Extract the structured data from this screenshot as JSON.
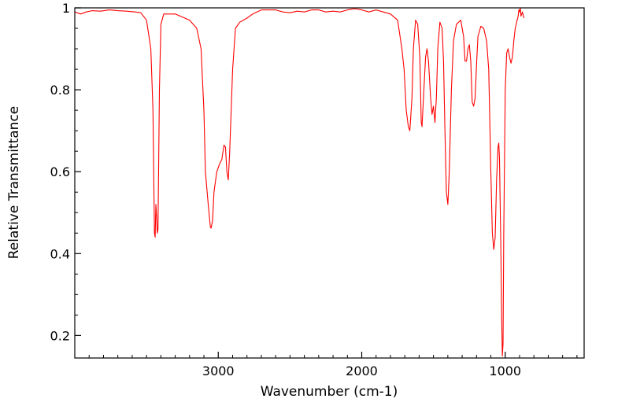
{
  "chart_data": {
    "type": "line",
    "title": "",
    "xlabel": "Wavenumber (cm-1)",
    "ylabel": "Relative Transmittance",
    "xlim": [
      4000,
      450
    ],
    "ylim": [
      0.145,
      1.0
    ],
    "x_reversed": true,
    "x_ticks": [
      3000,
      2000,
      1000
    ],
    "x_tick_labels": [
      "3000",
      "2000",
      "1000"
    ],
    "y_ticks": [
      0.2,
      0.4,
      0.6,
      0.8,
      1.0
    ],
    "y_tick_labels": [
      "0.2",
      "0.4",
      "0.6",
      "0.8",
      "1"
    ],
    "grid": false,
    "legend": "none",
    "series": [
      {
        "color": "#ff0000",
        "points": [
          [
            4000,
            0.99
          ],
          [
            3960,
            0.985
          ],
          [
            3920,
            0.99
          ],
          [
            3880,
            0.993
          ],
          [
            3820,
            0.992
          ],
          [
            3760,
            0.995
          ],
          [
            3700,
            0.993
          ],
          [
            3640,
            0.992
          ],
          [
            3580,
            0.99
          ],
          [
            3540,
            0.988
          ],
          [
            3500,
            0.97
          ],
          [
            3470,
            0.9
          ],
          [
            3455,
            0.75
          ],
          [
            3445,
            0.45
          ],
          [
            3440,
            0.44
          ],
          [
            3435,
            0.52
          ],
          [
            3430,
            0.49
          ],
          [
            3425,
            0.45
          ],
          [
            3420,
            0.46
          ],
          [
            3410,
            0.8
          ],
          [
            3400,
            0.96
          ],
          [
            3380,
            0.985
          ],
          [
            3300,
            0.985
          ],
          [
            3200,
            0.97
          ],
          [
            3150,
            0.95
          ],
          [
            3120,
            0.9
          ],
          [
            3100,
            0.75
          ],
          [
            3090,
            0.6
          ],
          [
            3070,
            0.52
          ],
          [
            3055,
            0.465
          ],
          [
            3050,
            0.462
          ],
          [
            3040,
            0.48
          ],
          [
            3030,
            0.55
          ],
          [
            3010,
            0.6
          ],
          [
            2990,
            0.62
          ],
          [
            2975,
            0.63
          ],
          [
            2960,
            0.665
          ],
          [
            2950,
            0.66
          ],
          [
            2940,
            0.6
          ],
          [
            2930,
            0.58
          ],
          [
            2920,
            0.65
          ],
          [
            2900,
            0.85
          ],
          [
            2880,
            0.95
          ],
          [
            2850,
            0.965
          ],
          [
            2800,
            0.975
          ],
          [
            2760,
            0.985
          ],
          [
            2700,
            0.995
          ],
          [
            2600,
            0.995
          ],
          [
            2550,
            0.99
          ],
          [
            2500,
            0.988
          ],
          [
            2450,
            0.992
          ],
          [
            2400,
            0.99
          ],
          [
            2350,
            0.995
          ],
          [
            2300,
            0.995
          ],
          [
            2250,
            0.99
          ],
          [
            2200,
            0.992
          ],
          [
            2150,
            0.99
          ],
          [
            2100,
            0.995
          ],
          [
            2050,
            0.998
          ],
          [
            2000,
            0.995
          ],
          [
            1950,
            0.99
          ],
          [
            1900,
            0.995
          ],
          [
            1850,
            0.99
          ],
          [
            1800,
            0.985
          ],
          [
            1750,
            0.97
          ],
          [
            1720,
            0.9
          ],
          [
            1705,
            0.85
          ],
          [
            1690,
            0.75
          ],
          [
            1675,
            0.71
          ],
          [
            1665,
            0.7
          ],
          [
            1650,
            0.78
          ],
          [
            1640,
            0.9
          ],
          [
            1625,
            0.97
          ],
          [
            1610,
            0.96
          ],
          [
            1595,
            0.88
          ],
          [
            1585,
            0.72
          ],
          [
            1580,
            0.71
          ],
          [
            1570,
            0.78
          ],
          [
            1555,
            0.88
          ],
          [
            1545,
            0.9
          ],
          [
            1535,
            0.87
          ],
          [
            1520,
            0.78
          ],
          [
            1510,
            0.74
          ],
          [
            1500,
            0.76
          ],
          [
            1490,
            0.72
          ],
          [
            1480,
            0.78
          ],
          [
            1470,
            0.9
          ],
          [
            1455,
            0.965
          ],
          [
            1440,
            0.95
          ],
          [
            1430,
            0.87
          ],
          [
            1420,
            0.7
          ],
          [
            1410,
            0.55
          ],
          [
            1400,
            0.52
          ],
          [
            1390,
            0.6
          ],
          [
            1375,
            0.8
          ],
          [
            1360,
            0.92
          ],
          [
            1340,
            0.96
          ],
          [
            1310,
            0.97
          ],
          [
            1290,
            0.93
          ],
          [
            1280,
            0.87
          ],
          [
            1270,
            0.87
          ],
          [
            1260,
            0.9
          ],
          [
            1250,
            0.91
          ],
          [
            1240,
            0.87
          ],
          [
            1230,
            0.77
          ],
          [
            1220,
            0.76
          ],
          [
            1210,
            0.78
          ],
          [
            1200,
            0.86
          ],
          [
            1190,
            0.93
          ],
          [
            1170,
            0.955
          ],
          [
            1150,
            0.95
          ],
          [
            1130,
            0.92
          ],
          [
            1115,
            0.85
          ],
          [
            1100,
            0.6
          ],
          [
            1090,
            0.45
          ],
          [
            1080,
            0.41
          ],
          [
            1070,
            0.44
          ],
          [
            1060,
            0.58
          ],
          [
            1050,
            0.66
          ],
          [
            1045,
            0.67
          ],
          [
            1040,
            0.63
          ],
          [
            1030,
            0.4
          ],
          [
            1025,
            0.25
          ],
          [
            1020,
            0.15
          ],
          [
            1015,
            0.18
          ],
          [
            1010,
            0.45
          ],
          [
            1000,
            0.8
          ],
          [
            990,
            0.89
          ],
          [
            980,
            0.9
          ],
          [
            970,
            0.88
          ],
          [
            960,
            0.865
          ],
          [
            950,
            0.88
          ],
          [
            940,
            0.92
          ],
          [
            930,
            0.95
          ],
          [
            920,
            0.965
          ],
          [
            910,
            0.98
          ],
          [
            905,
            0.995
          ],
          [
            900,
            0.99
          ],
          [
            895,
            1.0
          ],
          [
            890,
            0.98
          ],
          [
            880,
            0.99
          ],
          [
            870,
            0.975
          ]
        ]
      }
    ]
  }
}
